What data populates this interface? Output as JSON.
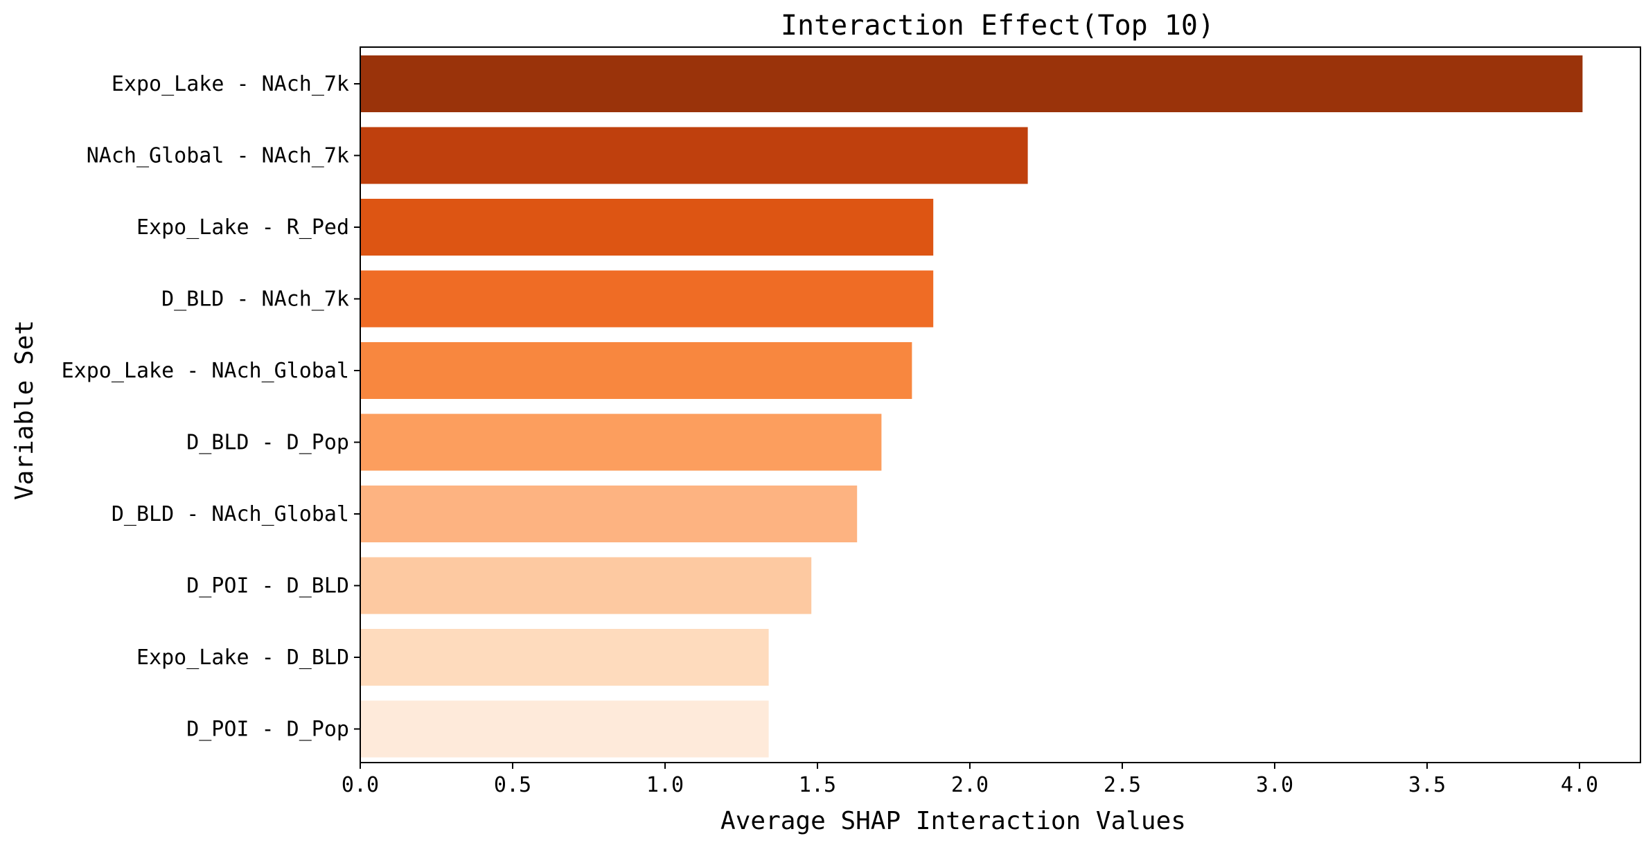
{
  "chart_data": {
    "type": "bar",
    "orientation": "horizontal",
    "title": "Interaction Effect(Top 10)",
    "xlabel": "Average SHAP Interaction Values",
    "ylabel": "Variable Set",
    "xlim": [
      0,
      4.2
    ],
    "xticks": [
      "0.0",
      "0.5",
      "1.0",
      "1.5",
      "2.0",
      "2.5",
      "3.0",
      "3.5",
      "4.0"
    ],
    "xtick_values": [
      0,
      0.5,
      1.0,
      1.5,
      2.0,
      2.5,
      3.0,
      3.5,
      4.0
    ],
    "grid": false,
    "legend": "none",
    "colormap": "Oranges (reversed, darkest = largest)",
    "categories": [
      "Expo_Lake - NAch_7k",
      "NAch_Global - NAch_7k",
      "Expo_Lake - R_Ped",
      "D_BLD - NAch_7k",
      "Expo_Lake - NAch_Global",
      "D_BLD - D_Pop",
      "D_BLD - NAch_Global",
      "D_POI - D_BLD",
      "Expo_Lake - D_BLD",
      "D_POI - D_Pop"
    ],
    "values": [
      4.01,
      2.19,
      1.88,
      1.88,
      1.81,
      1.71,
      1.63,
      1.48,
      1.34,
      1.34
    ],
    "colors": [
      "#9a330a",
      "#bf400d",
      "#dd5513",
      "#ef6c25",
      "#f8873f",
      "#fc9e5e",
      "#fdb381",
      "#fdc9a1",
      "#fedbbd",
      "#feeada"
    ]
  }
}
